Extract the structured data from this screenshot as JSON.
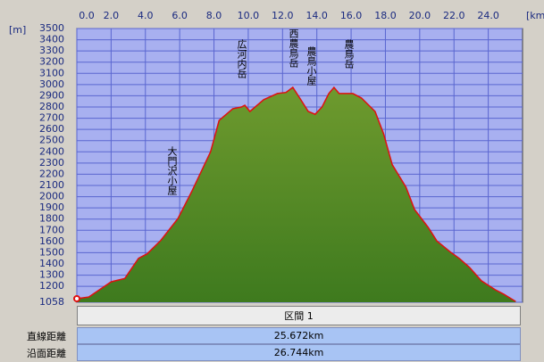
{
  "chart_data": {
    "type": "area",
    "x_unit": "[km]",
    "y_unit": "[m]",
    "x": [
      0,
      0.7,
      2.0,
      2.8,
      3.6,
      4.1,
      4.9,
      5.9,
      6.7,
      7.8,
      8.3,
      9.1,
      9.6,
      9.8,
      10.1,
      10.9,
      11.7,
      12.2,
      12.6,
      13.0,
      13.5,
      13.9,
      14.3,
      14.7,
      15.0,
      15.3,
      16.1,
      16.6,
      17.4,
      17.9,
      18.4,
      19.2,
      19.7,
      20.5,
      21.0,
      21.8,
      22.3,
      22.9,
      23.6,
      24.4,
      24.9,
      25.6
    ],
    "values": [
      1090,
      1105,
      1240,
      1270,
      1450,
      1490,
      1610,
      1805,
      2045,
      2400,
      2680,
      2785,
      2800,
      2815,
      2760,
      2865,
      2920,
      2930,
      2975,
      2880,
      2760,
      2735,
      2800,
      2920,
      2975,
      2920,
      2920,
      2880,
      2760,
      2560,
      2285,
      2085,
      1885,
      1725,
      1605,
      1505,
      1450,
      1370,
      1250,
      1170,
      1130,
      1065
    ],
    "color": "#6e9a2e",
    "line_color": "#e01010",
    "xlim": [
      0,
      26
    ],
    "xticks": [
      {
        "value": 0,
        "label": "0.0"
      },
      {
        "value": 2,
        "label": "2.0"
      },
      {
        "value": 4,
        "label": "4.0"
      },
      {
        "value": 6,
        "label": "6.0"
      },
      {
        "value": 8,
        "label": "8.0"
      },
      {
        "value": 10,
        "label": "10.0"
      },
      {
        "value": 12,
        "label": "12.0"
      },
      {
        "value": 14,
        "label": "14.0"
      },
      {
        "value": 16,
        "label": "16.0"
      },
      {
        "value": 18,
        "label": "18.0"
      },
      {
        "value": 20,
        "label": "20.0"
      },
      {
        "value": 22,
        "label": "22.0"
      },
      {
        "value": 24,
        "label": "24.0"
      }
    ],
    "ylim": [
      1058,
      3500
    ],
    "yticks": [
      1058,
      1200,
      1300,
      1400,
      1500,
      1600,
      1700,
      1800,
      1900,
      2000,
      2100,
      2200,
      2300,
      2400,
      2500,
      2600,
      2700,
      2800,
      2900,
      3000,
      3100,
      3200,
      3300,
      3400,
      3500
    ],
    "grid": true,
    "annotations": [
      "広河内岳",
      "西農鳥岳",
      "農鳥小屋",
      "農鳥岳",
      "大門沢小屋"
    ]
  },
  "table": {
    "header": "区間 1",
    "rows": [
      [
        "直線距離",
        "25.672km"
      ],
      [
        "沿面距離",
        "26.744km"
      ]
    ]
  }
}
